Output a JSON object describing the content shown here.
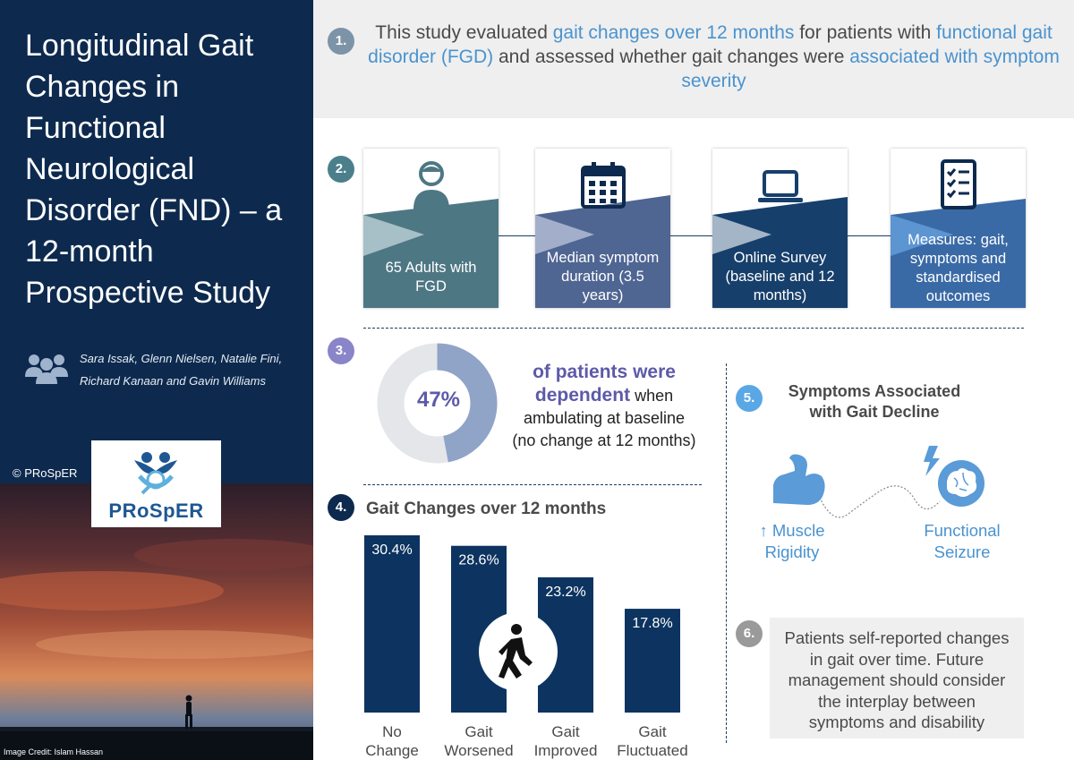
{
  "title": "Longitudinal Gait Changes in Functional Neurological Disorder (FND) – a 12-month Prospective Study",
  "authors": "Sara Issak, Glenn Nielsen, Natalie Fini, Richard Kanaan and Gavin Williams",
  "copyright": "© PRoSpER",
  "logo_text": "PRoSpER",
  "image_credit": "Image Credit: Islam Hassan",
  "section1": {
    "badge": "1.",
    "text_a": "This study evaluated ",
    "hl_a": "gait changes over 12 months",
    "text_b": " for patients with ",
    "hl_b": "functional gait disorder (FGD)",
    "text_c": " and assessed whether gait changes were ",
    "hl_c": "associated with symptom severity"
  },
  "section2": {
    "badge": "2.",
    "cards": [
      {
        "icon": "person-icon",
        "text": "65 Adults with FGD"
      },
      {
        "icon": "calendar-icon",
        "text": "Median symptom duration (3.5 years)"
      },
      {
        "icon": "laptop-icon",
        "text": "Online Survey (baseline and 12 months)"
      },
      {
        "icon": "checklist-icon",
        "text": "Measures: gait, symptoms and standardised outcomes"
      }
    ]
  },
  "section3": {
    "badge": "3.",
    "percent": "47%",
    "percent_value": 47,
    "strong_a": "of patients were",
    "strong_b": "dependent",
    "text_a": " when",
    "text_b": "ambulating at baseline",
    "text_c": "(no change at 12 months)"
  },
  "section4": {
    "badge": "4.",
    "title": "Gait Changes over 12 months"
  },
  "chart_data": {
    "type": "bar",
    "title": "Gait Changes over 12 months",
    "categories": [
      "No Change",
      "Gait Worsened",
      "Gait Improved",
      "Gait Fluctuated"
    ],
    "category_lines": [
      [
        "No",
        "Change"
      ],
      [
        "Gait",
        "Worsened"
      ],
      [
        "Gait",
        "Improved"
      ],
      [
        "Gait",
        "Fluctuated"
      ]
    ],
    "values": [
      30.4,
      28.6,
      23.2,
      17.8
    ],
    "value_labels": [
      "30.4%",
      "28.6%",
      "23.2%",
      "17.8%"
    ],
    "ylim": [
      0,
      30.4
    ],
    "xlabel": "",
    "ylabel": "",
    "color": "#0d3460"
  },
  "section5": {
    "badge": "5.",
    "title": "Symptoms Associated with Gait Decline",
    "symptom_a": "↑ Muscle Rigidity",
    "symptom_b": "Functional Seizure"
  },
  "section6": {
    "badge": "6.",
    "text": "Patients self-reported changes in gait over time. Future management should consider the interplay between symptoms and disability"
  },
  "colors": {
    "navy": "#0d2a4e",
    "accent_blue": "#4a93cf",
    "purple": "#5d5aa8",
    "gray_bg": "#efefef"
  }
}
